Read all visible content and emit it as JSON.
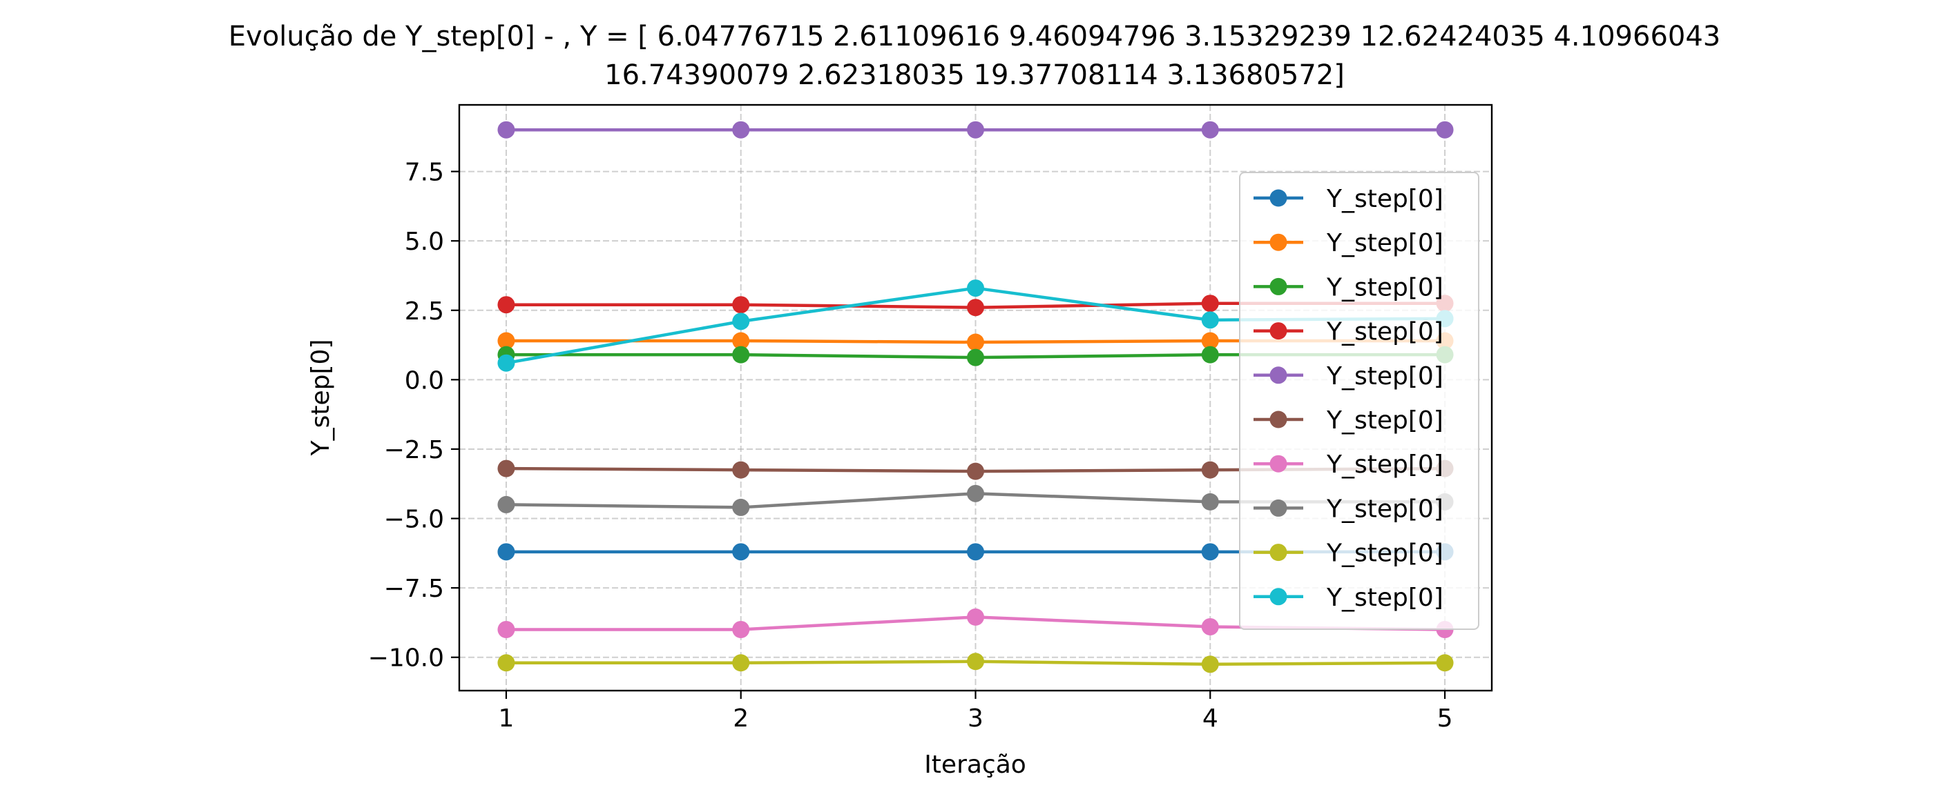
{
  "chart_data": {
    "type": "line",
    "title_line1": "Evolução de Y_step[0] - , Y = [ 6.04776715  2.61109616  9.46094796  3.15329239 12.62424035  4.10966043",
    "title_line2": "16.74390079  2.62318035 19.37708114  3.13680572]",
    "xlabel": "Iteração",
    "ylabel": "Y_step[0]",
    "x": [
      1,
      2,
      3,
      4,
      5
    ],
    "x_ticks": [
      1,
      2,
      3,
      4,
      5
    ],
    "y_ticks": [
      7.5,
      5.0,
      2.5,
      0.0,
      -2.5,
      -5.0,
      -7.5,
      -10.0
    ],
    "y_tick_labels": [
      "7.5",
      "5.0",
      "2.5",
      "0.0",
      "−2.5",
      "−5.0",
      "−7.5",
      "−10.0"
    ],
    "xlim": [
      0.8,
      5.2
    ],
    "ylim": [
      -11.2,
      9.9
    ],
    "grid": true,
    "legend_position": "right",
    "series": [
      {
        "name": "Y_step[0]",
        "color": "#1f77b4",
        "values": [
          -6.2,
          -6.2,
          -6.2,
          -6.2,
          -6.2
        ]
      },
      {
        "name": "Y_step[0]",
        "color": "#ff7f0e",
        "values": [
          1.4,
          1.4,
          1.35,
          1.4,
          1.4
        ]
      },
      {
        "name": "Y_step[0]",
        "color": "#2ca02c",
        "values": [
          0.9,
          0.9,
          0.8,
          0.9,
          0.9
        ]
      },
      {
        "name": "Y_step[0]",
        "color": "#d62728",
        "values": [
          2.7,
          2.7,
          2.6,
          2.75,
          2.75
        ]
      },
      {
        "name": "Y_step[0]",
        "color": "#9467bd",
        "values": [
          9.0,
          9.0,
          9.0,
          9.0,
          9.0
        ]
      },
      {
        "name": "Y_step[0]",
        "color": "#8c564b",
        "values": [
          -3.2,
          -3.25,
          -3.3,
          -3.25,
          -3.2
        ]
      },
      {
        "name": "Y_step[0]",
        "color": "#e377c2",
        "values": [
          -9.0,
          -9.0,
          -8.55,
          -8.9,
          -9.0
        ]
      },
      {
        "name": "Y_step[0]",
        "color": "#7f7f7f",
        "values": [
          -4.5,
          -4.6,
          -4.1,
          -4.4,
          -4.4
        ]
      },
      {
        "name": "Y_step[0]",
        "color": "#bcbd22",
        "values": [
          -10.2,
          -10.2,
          -10.15,
          -10.25,
          -10.2
        ]
      },
      {
        "name": "Y_step[0]",
        "color": "#17becf",
        "values": [
          0.6,
          2.1,
          3.3,
          2.15,
          2.2
        ]
      }
    ]
  }
}
